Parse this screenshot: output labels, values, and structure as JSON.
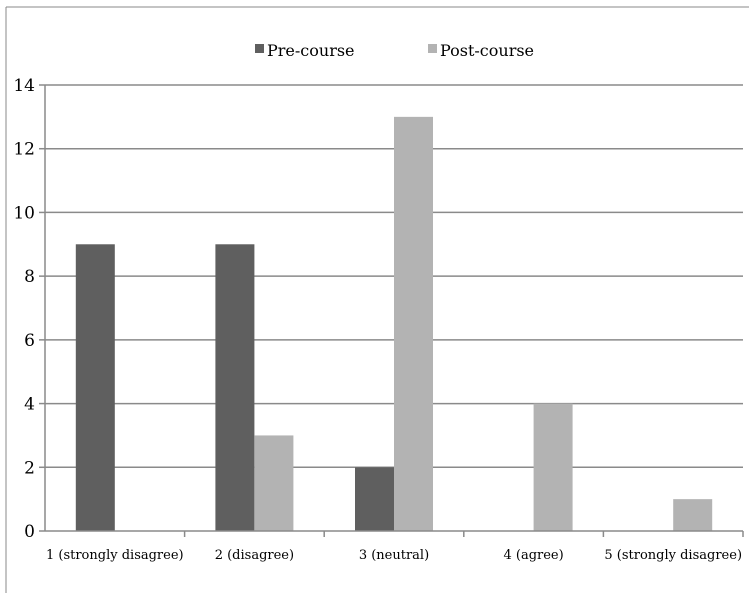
{
  "chart_data": {
    "type": "bar",
    "title": "",
    "xlabel": "",
    "ylabel": "",
    "categories": [
      "1 (strongly disagree)",
      "2 (disagree)",
      "3 (neutral)",
      "4 (agree)",
      "5 (strongly disagree)"
    ],
    "series": [
      {
        "name": "Pre-course",
        "values": [
          9,
          9,
          2,
          0,
          0
        ],
        "color": "#5f5f5f"
      },
      {
        "name": "Post-course",
        "values": [
          0,
          3,
          13,
          4,
          1
        ],
        "color": "#b3b3b3"
      }
    ],
    "ylim": [
      0,
      14
    ],
    "yticks": [
      0,
      2,
      4,
      6,
      8,
      10,
      12,
      14
    ],
    "grid": true,
    "legend_position": "top"
  }
}
